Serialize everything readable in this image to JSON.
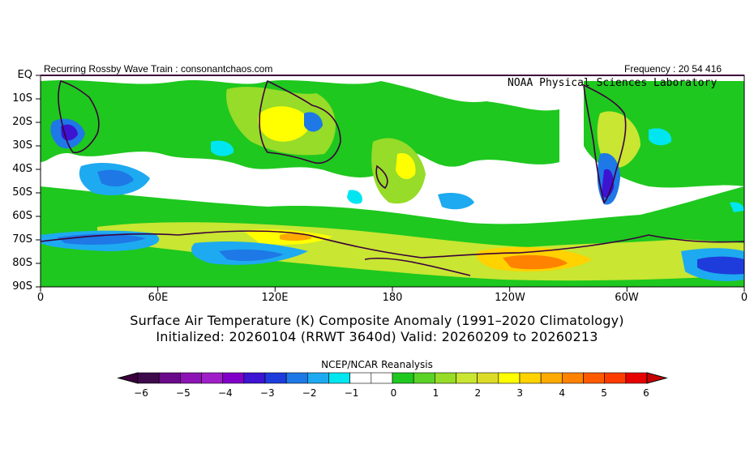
{
  "header": {
    "left": "Recurring Rossby Wave Train : consonantchaos.com",
    "right": "Frequency : 20 54 416",
    "lab": "NOAA Physical Sciences Laboratory"
  },
  "title": {
    "line1": "Surface Air Temperature (K) Composite Anomaly (1991–2020 Climatology)",
    "line2": "Initialized: 20260104 (RRWT 3640d) Valid: 20260209 to 20260213"
  },
  "axes": {
    "lat_labels": [
      "EQ",
      "10S",
      "20S",
      "30S",
      "40S",
      "50S",
      "60S",
      "70S",
      "80S",
      "90S"
    ],
    "lon_labels": [
      "0",
      "60E",
      "120E",
      "180",
      "120W",
      "60W",
      "0"
    ]
  },
  "colorbar": {
    "title": "NCEP/NCAR Reanalysis",
    "ticks": [
      "−6",
      "−5",
      "−4",
      "−3",
      "−2",
      "−1",
      "0",
      "1",
      "2",
      "3",
      "4",
      "5",
      "6"
    ],
    "colors": [
      "#3d0a4a",
      "#6a0a8a",
      "#8c14b4",
      "#a01ec8",
      "#8000c8",
      "#3c14d2",
      "#1e3cdc",
      "#1e78e6",
      "#1eaaf0",
      "#00e6f0",
      "#ffffff",
      "#ffffff",
      "#1ec81e",
      "#5ad228",
      "#96dc28",
      "#c8e632",
      "#dcdc28",
      "#ffff00",
      "#ffd200",
      "#ffaa00",
      "#ff8200",
      "#ff5a00",
      "#ff3c00",
      "#e60000"
    ],
    "left_arrow": "#3c003c",
    "right_arrow": "#c80000"
  },
  "map": {
    "extent": {
      "lon": [
        0,
        360
      ],
      "lat": [
        0,
        -90
      ]
    },
    "background": "#ffffff"
  }
}
